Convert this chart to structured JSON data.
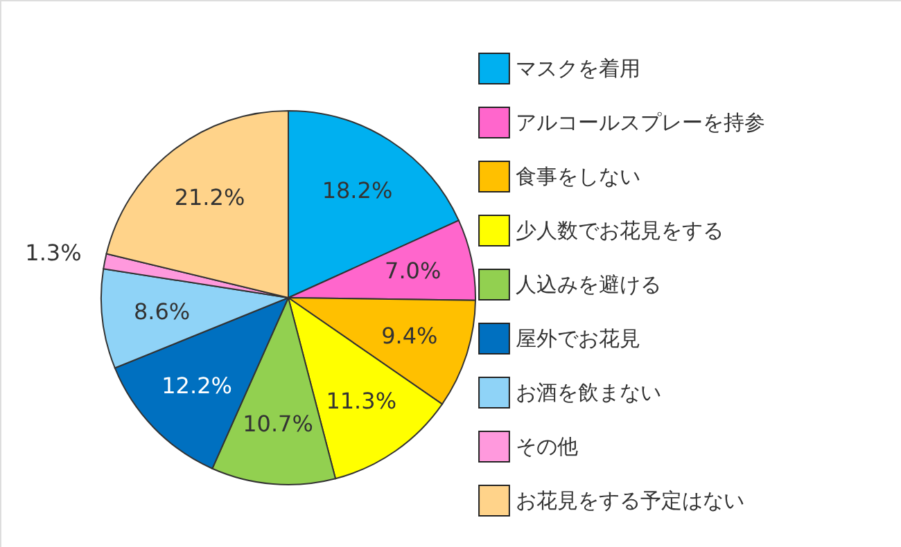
{
  "chart_data": {
    "type": "pie",
    "categories": [
      "マスクを着用",
      "アルコールスプレーを持参",
      "食事をしない",
      "少人数でお花見をする",
      "人込みを避ける",
      "屋外でお花見",
      "お酒を飲まない",
      "その他",
      "お花見をする予定はない"
    ],
    "values": [
      18.2,
      7.0,
      9.4,
      11.3,
      10.7,
      12.2,
      8.6,
      1.3,
      21.2
    ],
    "value_labels": [
      "18.2%",
      "7.0%",
      "9.4%",
      "11.3%",
      "10.7%",
      "12.2%",
      "8.6%",
      "1.3%",
      "21.2%"
    ],
    "colors": [
      "#00b0f0",
      "#ff66cc",
      "#ffc000",
      "#ffff00",
      "#92d050",
      "#0070c0",
      "#8fd3f7",
      "#ff99dd",
      "#ffd38a"
    ],
    "legend": "right"
  }
}
